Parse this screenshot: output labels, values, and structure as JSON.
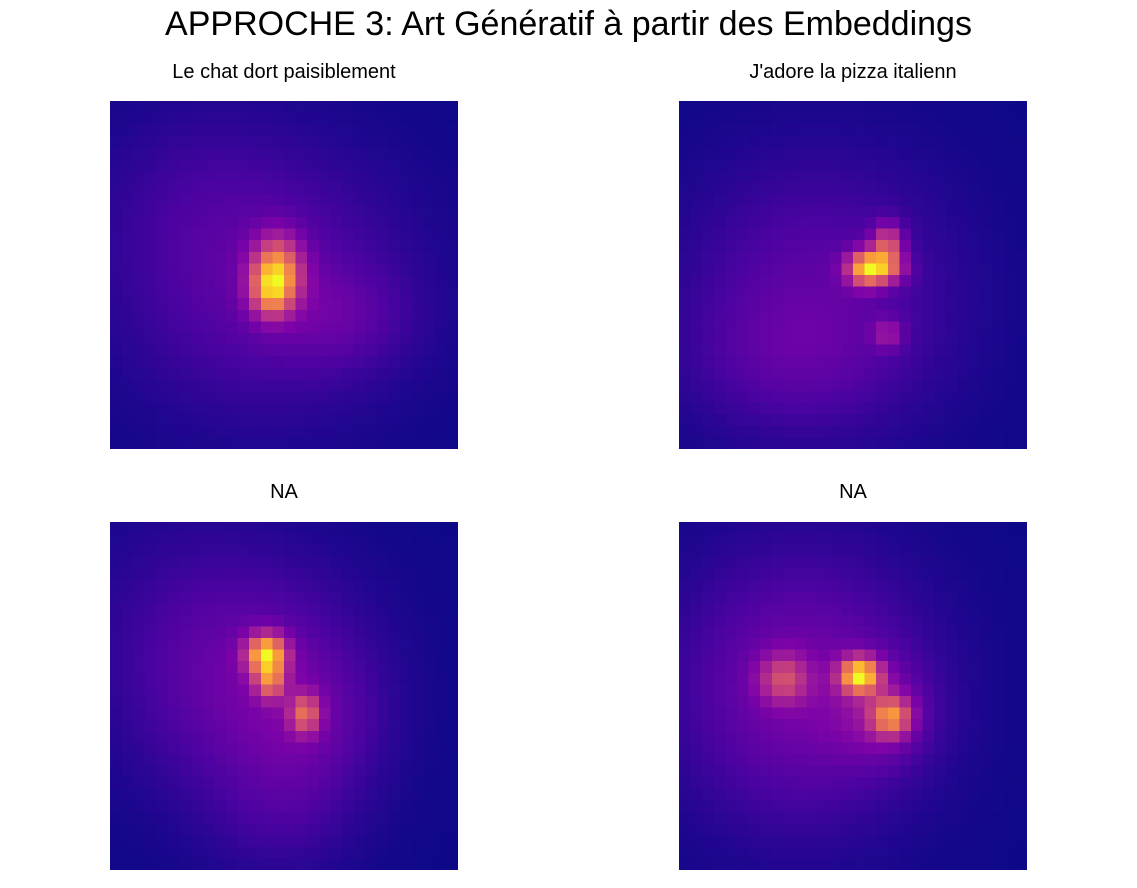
{
  "figure": {
    "title": "APPROCHE 3: Art Génératif à partir des Embeddings"
  },
  "chart_data": [
    {
      "type": "heatmap",
      "title": "Le chat dort paisiblement",
      "grid": false,
      "axes": "off",
      "colormap": "plasma",
      "resolution": 30,
      "blobs": [
        {
          "cx": 0.48,
          "cy": 0.49,
          "sx": 0.05,
          "sy": 0.07,
          "amp": 1.0
        },
        {
          "cx": 0.46,
          "cy": 0.55,
          "sx": 0.04,
          "sy": 0.05,
          "amp": 0.6
        },
        {
          "cx": 0.44,
          "cy": 0.52,
          "sx": 0.3,
          "sy": 0.28,
          "amp": 0.28
        },
        {
          "cx": 0.66,
          "cy": 0.62,
          "sx": 0.14,
          "sy": 0.1,
          "amp": 0.15
        },
        {
          "cx": 0.22,
          "cy": 0.25,
          "sx": 0.2,
          "sy": 0.2,
          "amp": 0.07
        }
      ]
    },
    {
      "type": "heatmap",
      "title": "J'adore la pizza italienn",
      "grid": false,
      "axes": "off",
      "colormap": "plasma",
      "resolution": 30,
      "blobs": [
        {
          "cx": 0.54,
          "cy": 0.48,
          "sx": 0.04,
          "sy": 0.035,
          "amp": 1.0
        },
        {
          "cx": 0.6,
          "cy": 0.41,
          "sx": 0.03,
          "sy": 0.04,
          "amp": 0.6
        },
        {
          "cx": 0.6,
          "cy": 0.48,
          "sx": 0.04,
          "sy": 0.03,
          "amp": 0.5
        },
        {
          "cx": 0.6,
          "cy": 0.67,
          "sx": 0.03,
          "sy": 0.03,
          "amp": 0.3
        },
        {
          "cx": 0.4,
          "cy": 0.55,
          "sx": 0.28,
          "sy": 0.28,
          "amp": 0.24
        },
        {
          "cx": 0.3,
          "cy": 0.75,
          "sx": 0.22,
          "sy": 0.14,
          "amp": 0.1
        }
      ]
    },
    {
      "type": "heatmap",
      "title": "NA",
      "grid": false,
      "axes": "off",
      "colormap": "plasma",
      "resolution": 30,
      "blobs": [
        {
          "cx": 0.45,
          "cy": 0.38,
          "sx": 0.04,
          "sy": 0.04,
          "amp": 1.0
        },
        {
          "cx": 0.46,
          "cy": 0.46,
          "sx": 0.03,
          "sy": 0.035,
          "amp": 0.55
        },
        {
          "cx": 0.56,
          "cy": 0.55,
          "sx": 0.03,
          "sy": 0.04,
          "amp": 0.55
        },
        {
          "cx": 0.42,
          "cy": 0.45,
          "sx": 0.24,
          "sy": 0.25,
          "amp": 0.25
        },
        {
          "cx": 0.58,
          "cy": 0.58,
          "sx": 0.14,
          "sy": 0.14,
          "amp": 0.12
        },
        {
          "cx": 0.5,
          "cy": 0.85,
          "sx": 0.16,
          "sy": 0.14,
          "amp": 0.1
        },
        {
          "cx": 0.15,
          "cy": 0.3,
          "sx": 0.2,
          "sy": 0.3,
          "amp": 0.06
        }
      ]
    },
    {
      "type": "heatmap",
      "title": "NA",
      "grid": false,
      "axes": "off",
      "colormap": "plasma",
      "resolution": 30,
      "blobs": [
        {
          "cx": 0.52,
          "cy": 0.44,
          "sx": 0.04,
          "sy": 0.035,
          "amp": 1.0
        },
        {
          "cx": 0.61,
          "cy": 0.56,
          "sx": 0.04,
          "sy": 0.04,
          "amp": 0.65
        },
        {
          "cx": 0.3,
          "cy": 0.45,
          "sx": 0.05,
          "sy": 0.05,
          "amp": 0.42
        },
        {
          "cx": 0.35,
          "cy": 0.48,
          "sx": 0.26,
          "sy": 0.28,
          "amp": 0.3
        },
        {
          "cx": 0.58,
          "cy": 0.55,
          "sx": 0.1,
          "sy": 0.1,
          "amp": 0.2
        }
      ]
    }
  ]
}
